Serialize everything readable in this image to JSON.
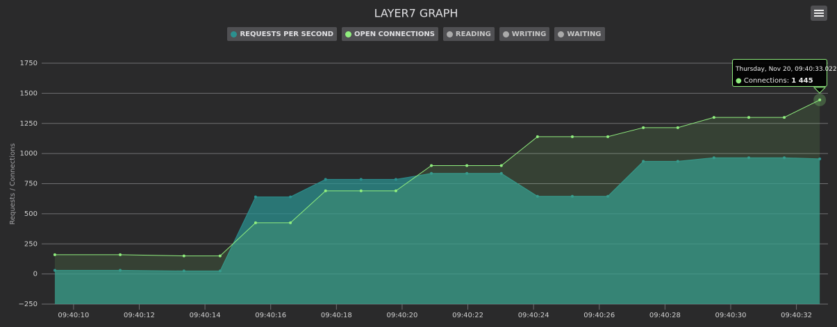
{
  "chart_data": {
    "type": "area",
    "title": "LAYER7 GRAPH",
    "ylabel": "Requests / Connections",
    "x": [
      9.43,
      11.42,
      13.36,
      14.46,
      15.54,
      16.6,
      17.67,
      18.75,
      19.81,
      20.89,
      21.97,
      23.02,
      24.12,
      25.18,
      26.26,
      27.34,
      28.39,
      29.49,
      30.55,
      31.63,
      32.71
    ],
    "series": [
      {
        "name": "Requests per second",
        "color": "#2b908f",
        "values": [
          30,
          30,
          25,
          25,
          640,
          640,
          785,
          785,
          785,
          835,
          835,
          835,
          645,
          645,
          645,
          935,
          935,
          965,
          965,
          965,
          955
        ]
      },
      {
        "name": "Open connections",
        "color": "#90ee7e",
        "values": [
          160,
          160,
          150,
          150,
          425,
          425,
          690,
          690,
          690,
          900,
          900,
          900,
          1140,
          1140,
          1140,
          1215,
          1215,
          1300,
          1300,
          1300,
          1445
        ]
      }
    ],
    "inactive_legend": [
      "Reading",
      "Writing",
      "Waiting"
    ],
    "inactive_color": "#aaaaaa",
    "xlim": [
      9.03,
      32.96
    ],
    "xticks": [
      {
        "value": 10,
        "label": "09:40:10"
      },
      {
        "value": 12,
        "label": "09:40:12"
      },
      {
        "value": 14,
        "label": "09:40:14"
      },
      {
        "value": 16,
        "label": "09:40:16"
      },
      {
        "value": 18,
        "label": "09:40:18"
      },
      {
        "value": 20,
        "label": "09:40:20"
      },
      {
        "value": 22,
        "label": "09:40:22"
      },
      {
        "value": 24,
        "label": "09:40:24"
      },
      {
        "value": 26,
        "label": "09:40:26"
      },
      {
        "value": 28,
        "label": "09:40:28"
      },
      {
        "value": 30,
        "label": "09:40:30"
      },
      {
        "value": 32,
        "label": "09:40:32"
      }
    ],
    "ylim": [
      -250,
      1750
    ],
    "yticks": [
      {
        "value": -250,
        "label": "−250"
      },
      0,
      250,
      500,
      750,
      1000,
      1250,
      1500,
      1750
    ],
    "grid": true,
    "tooltip": {
      "header": "Thursday, Nov 20, 09:40:33.022",
      "label": "Connections:",
      "value": "1 445"
    }
  }
}
